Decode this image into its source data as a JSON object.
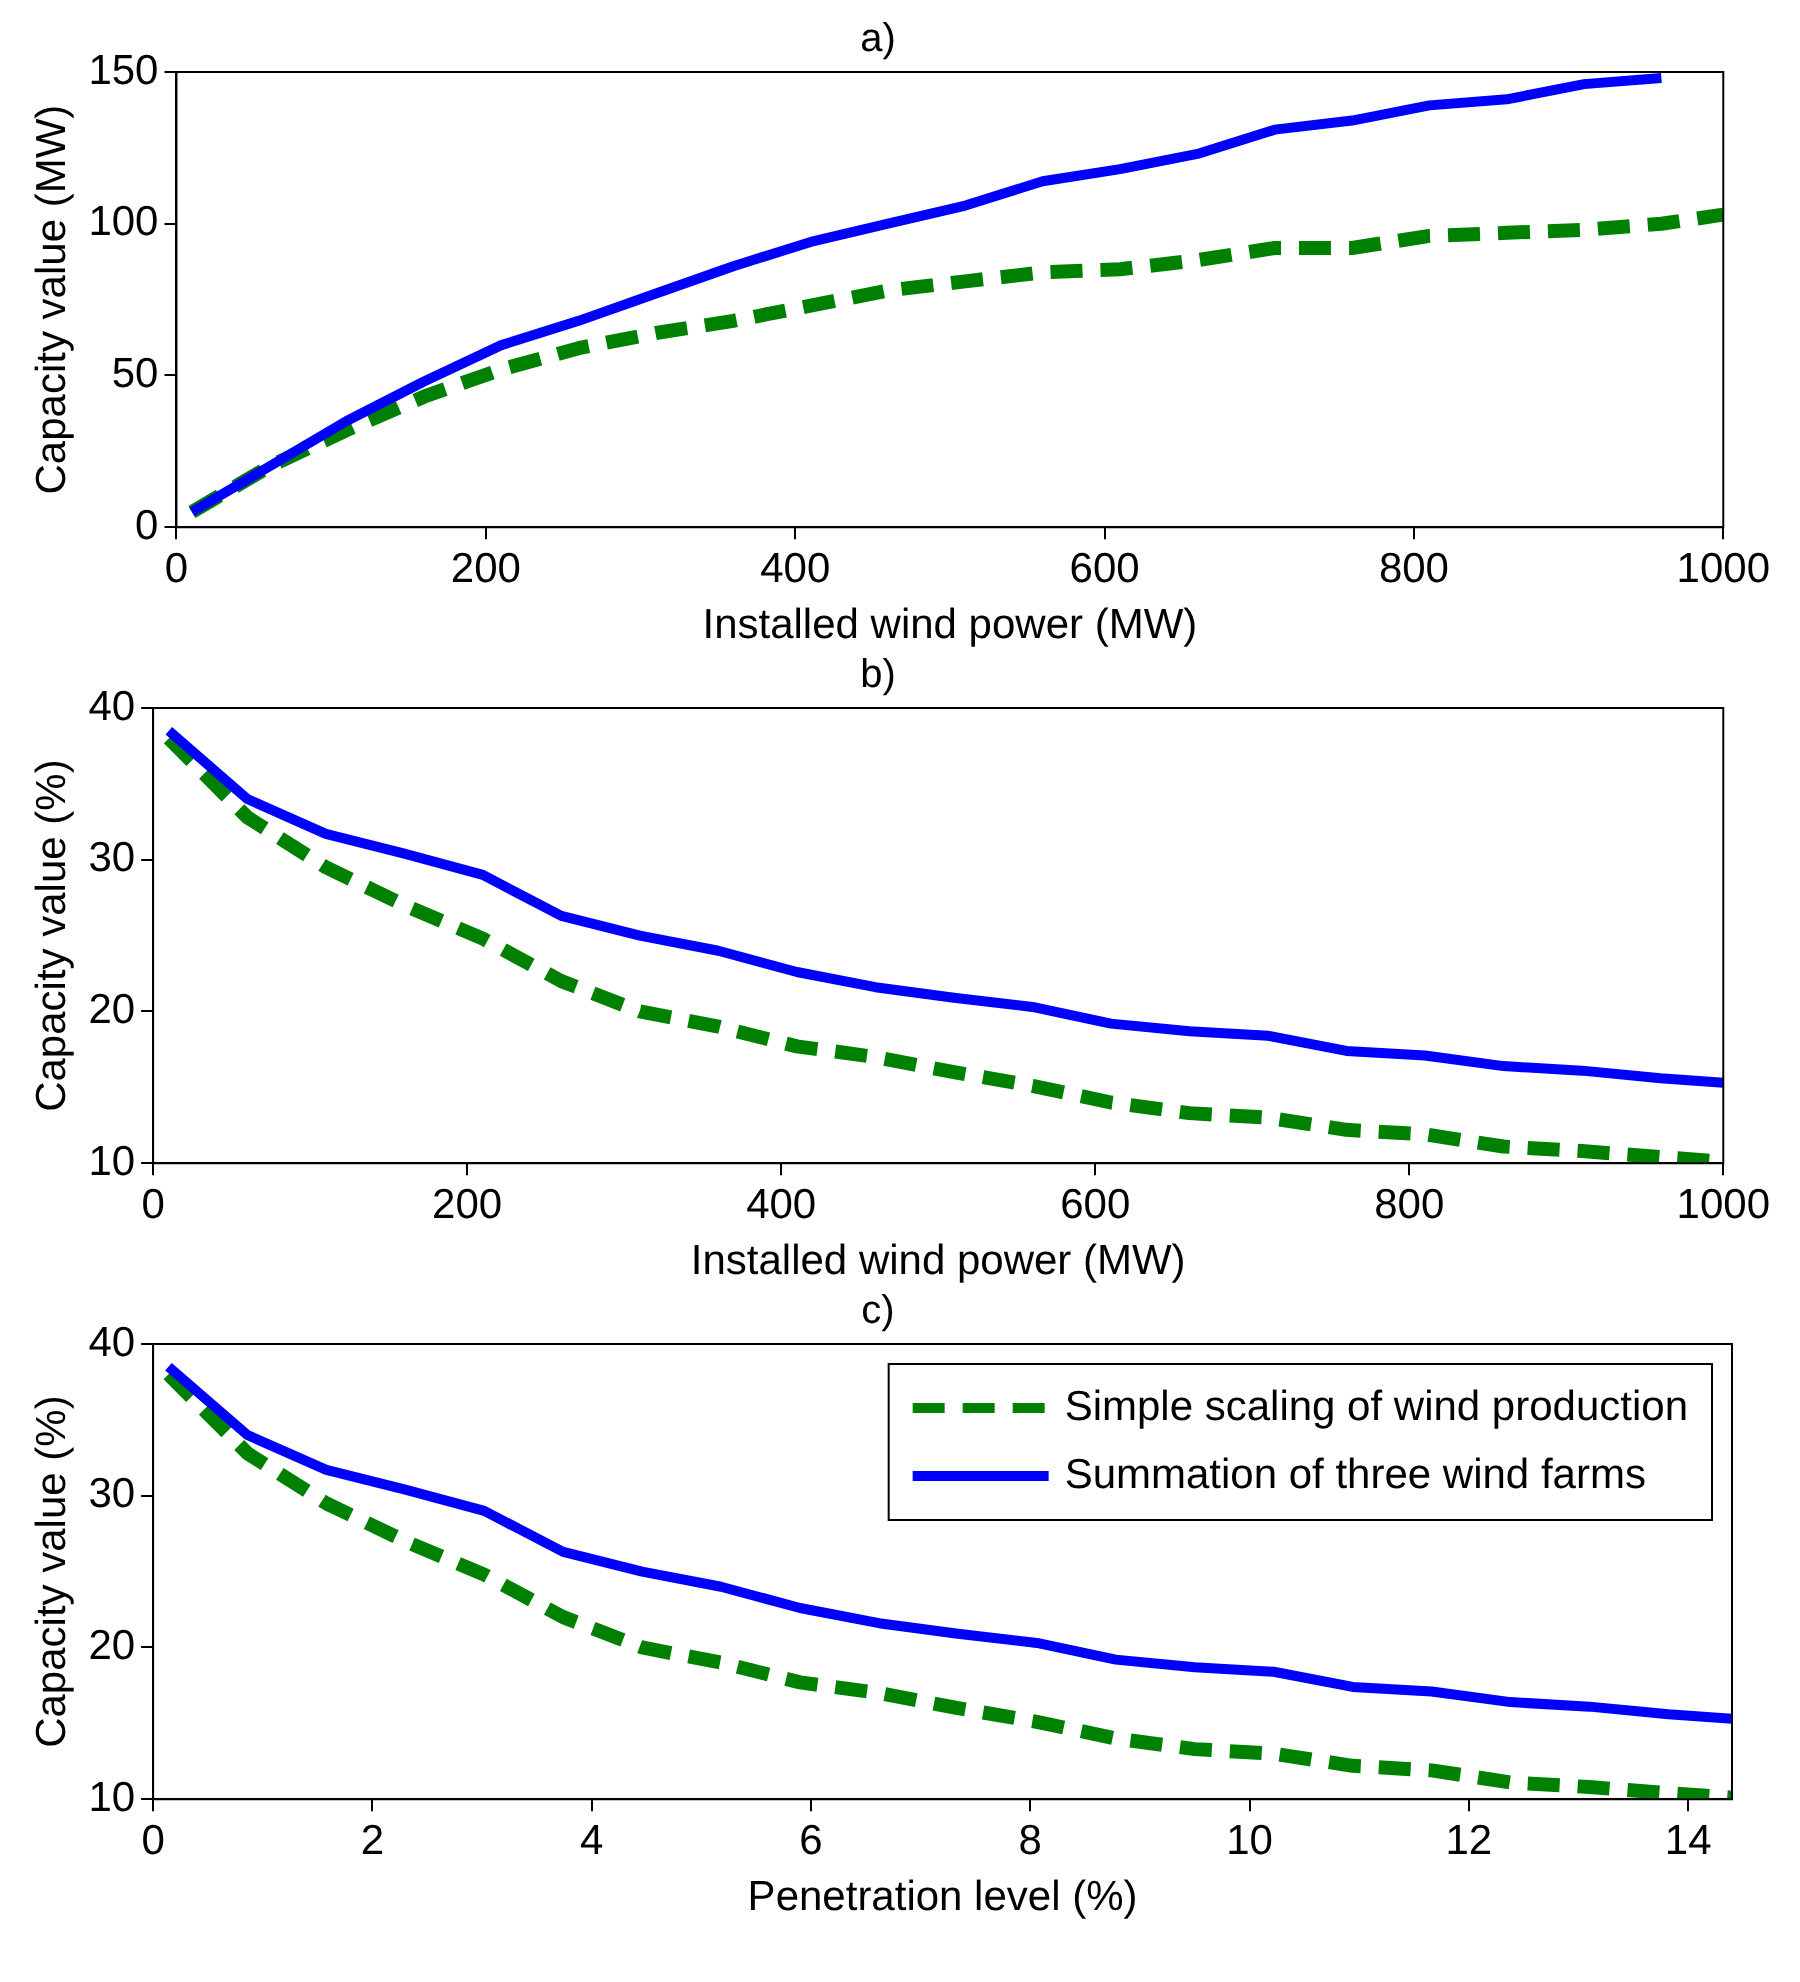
{
  "chart_data": [
    {
      "type": "line",
      "title": "a)",
      "xlabel": "Installed wind power (MW)",
      "ylabel": "Capacity value (MW)",
      "xlim": [
        0,
        1000
      ],
      "xticks": [
        0,
        200,
        400,
        600,
        800,
        1000
      ],
      "ylim": [
        0,
        150
      ],
      "yticks": [
        0,
        50,
        100,
        150
      ],
      "grid": false,
      "legend": false,
      "marker": "none",
      "x": [
        10,
        60,
        110,
        160,
        210,
        260,
        310,
        360,
        410,
        460,
        510,
        560,
        610,
        660,
        710,
        760,
        810,
        860,
        910,
        960,
        1000
      ],
      "series": [
        {
          "color": "#008000",
          "line_style": "dashed",
          "values": [
            5,
            20,
            32,
            43,
            52,
            59,
            64,
            68,
            73,
            78,
            81,
            84,
            85,
            88,
            92,
            92,
            96,
            97,
            98,
            100,
            103
          ]
        },
        {
          "color": "#0000ff",
          "line_style": "solid",
          "values": [
            5,
            20,
            35,
            48,
            60,
            68,
            77,
            86,
            94,
            100,
            106,
            114,
            118,
            123,
            131,
            134,
            139,
            141,
            146,
            148,
            null
          ]
        }
      ]
    },
    {
      "type": "line",
      "title": "b)",
      "xlabel": "Installed wind power (MW)",
      "ylabel": "Capacity value (%)",
      "xlim": [
        0,
        1000
      ],
      "xticks": [
        0,
        200,
        400,
        600,
        800,
        1000
      ],
      "ylim": [
        10,
        40
      ],
      "yticks": [
        10,
        20,
        30,
        40
      ],
      "grid": false,
      "legend": false,
      "marker": "none",
      "x": [
        10,
        60,
        110,
        160,
        210,
        260,
        310,
        360,
        410,
        460,
        510,
        560,
        610,
        660,
        710,
        760,
        810,
        860,
        910,
        960,
        1000
      ],
      "series": [
        {
          "color": "#008000",
          "line_style": "dashed",
          "values": [
            38,
            32.8,
            29.5,
            27,
            24.8,
            22,
            20,
            19,
            17.7,
            17,
            16,
            15.1,
            14,
            13.3,
            13,
            12.2,
            11.9,
            11.1,
            10.8,
            10.4,
            10.1
          ]
        },
        {
          "color": "#0000ff",
          "line_style": "solid",
          "values": [
            38.5,
            34,
            31.7,
            30.4,
            29,
            26.3,
            25,
            24,
            22.6,
            21.6,
            20.9,
            20.3,
            19.2,
            18.7,
            18.4,
            17.4,
            17.1,
            16.4,
            16.1,
            15.6,
            15.3
          ]
        }
      ]
    },
    {
      "type": "line",
      "title": "c)",
      "xlabel": "Penetration level (%)",
      "ylabel": "Capacity value (%)",
      "xlim": [
        0,
        14.4
      ],
      "xticks": [
        0,
        2,
        4,
        6,
        8,
        10,
        12,
        14
      ],
      "ylim": [
        10,
        40
      ],
      "yticks": [
        10,
        20,
        30,
        40
      ],
      "grid": false,
      "legend": "top right",
      "marker": "none",
      "x": [
        0.14,
        0.86,
        1.58,
        2.3,
        3.02,
        3.74,
        4.46,
        5.18,
        5.9,
        6.62,
        7.34,
        8.06,
        8.78,
        9.5,
        10.22,
        10.94,
        11.66,
        12.38,
        13.1,
        13.82,
        14.4
      ],
      "series": [
        {
          "name": "Simple scaling of wind production",
          "color": "#008000",
          "line_style": "dashed",
          "values": [
            38,
            32.8,
            29.5,
            27,
            24.8,
            22,
            20,
            19,
            17.7,
            17,
            16,
            15.1,
            14,
            13.3,
            13,
            12.2,
            11.9,
            11.1,
            10.8,
            10.4,
            10.1
          ]
        },
        {
          "name": "Summation of three wind farms",
          "color": "#0000ff",
          "line_style": "solid",
          "values": [
            38.5,
            34,
            31.7,
            30.4,
            29,
            26.3,
            25,
            24,
            22.6,
            21.6,
            20.9,
            20.3,
            19.2,
            18.7,
            18.4,
            17.4,
            17.1,
            16.4,
            16.1,
            15.6,
            15.3
          ]
        }
      ]
    }
  ]
}
